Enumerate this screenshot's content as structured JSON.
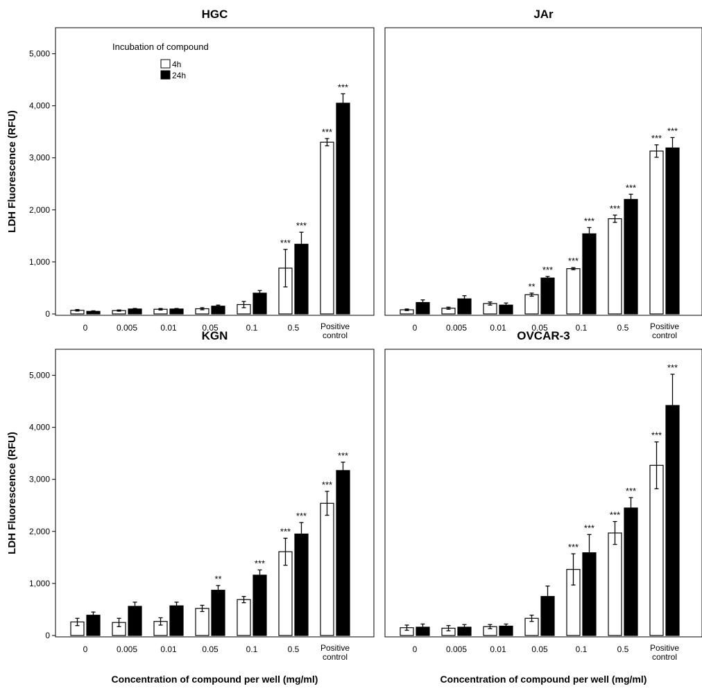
{
  "chart_data": [
    {
      "type": "bar",
      "title": "HGC",
      "ylabel": "LDH Fluorescence (RFU)",
      "xlabel": "",
      "ylim": [
        0,
        5500
      ],
      "yticks": [
        "0",
        "1,000",
        "2,000",
        "3,000",
        "4,000",
        "5,000"
      ],
      "categories": [
        "0",
        "0.005",
        "0.01",
        "0.05",
        "0.1",
        "0.5",
        "Positive control"
      ],
      "legend": {
        "title": "Incubation of compound",
        "placement": "top-left"
      },
      "series": [
        {
          "name": "4h",
          "color": "#ffffff",
          "values": [
            70,
            65,
            90,
            100,
            180,
            880,
            3300
          ],
          "errors": [
            15,
            12,
            15,
            20,
            60,
            360,
            70
          ],
          "stars": [
            "",
            "",
            "",
            "",
            "",
            "***",
            "***"
          ]
        },
        {
          "name": "24h",
          "color": "#000000",
          "values": [
            50,
            95,
            95,
            150,
            400,
            1340,
            4050
          ],
          "errors": [
            10,
            10,
            10,
            20,
            50,
            230,
            180
          ],
          "stars": [
            "",
            "",
            "",
            "",
            "",
            "***",
            "***"
          ]
        }
      ]
    },
    {
      "type": "bar",
      "title": "JAr",
      "ylabel": "",
      "xlabel": "",
      "ylim": [
        0,
        5500
      ],
      "yticks": [],
      "categories": [
        "0",
        "0.005",
        "0.01",
        "0.05",
        "0.1",
        "0.5",
        "Positive control"
      ],
      "series": [
        {
          "name": "4h",
          "color": "#ffffff",
          "values": [
            80,
            110,
            200,
            370,
            870,
            1830,
            3130
          ],
          "errors": [
            15,
            20,
            30,
            30,
            20,
            70,
            120
          ],
          "stars": [
            "",
            "",
            "",
            "**",
            "***",
            "***",
            "***"
          ]
        },
        {
          "name": "24h",
          "color": "#000000",
          "values": [
            220,
            290,
            170,
            690,
            1540,
            2200,
            3190
          ],
          "errors": [
            50,
            60,
            40,
            30,
            120,
            100,
            200
          ],
          "stars": [
            "",
            "",
            "",
            "***",
            "***",
            "***",
            "***"
          ]
        }
      ]
    },
    {
      "type": "bar",
      "title": "KGN",
      "ylabel": "LDH Fluorescence (RFU)",
      "xlabel": "Concentration of compound per well (mg/ml)",
      "ylim": [
        0,
        5500
      ],
      "yticks": [
        "0",
        "1,000",
        "2,000",
        "3,000",
        "4,000",
        "5,000"
      ],
      "categories": [
        "0",
        "0.005",
        "0.01",
        "0.05",
        "0.1",
        "0.5",
        "Positive control"
      ],
      "series": [
        {
          "name": "4h",
          "color": "#ffffff",
          "values": [
            260,
            250,
            270,
            520,
            690,
            1610,
            2540
          ],
          "errors": [
            70,
            80,
            70,
            60,
            60,
            260,
            230
          ],
          "stars": [
            "",
            "",
            "",
            "",
            "",
            "***",
            "***"
          ]
        },
        {
          "name": "24h",
          "color": "#000000",
          "values": [
            390,
            560,
            570,
            870,
            1160,
            1950,
            3170
          ],
          "errors": [
            60,
            80,
            70,
            90,
            100,
            220,
            160
          ],
          "stars": [
            "",
            "",
            "",
            "**",
            "***",
            "***",
            "***"
          ]
        }
      ]
    },
    {
      "type": "bar",
      "title": "OVCAR-3",
      "ylabel": "",
      "xlabel": "Concentration of compound per well (mg/ml)",
      "ylim": [
        0,
        5500
      ],
      "yticks": [],
      "categories": [
        "0",
        "0.005",
        "0.01",
        "0.05",
        "0.1",
        "0.5",
        "Positive control"
      ],
      "series": [
        {
          "name": "4h",
          "color": "#ffffff",
          "values": [
            150,
            140,
            170,
            330,
            1270,
            1970,
            3270
          ],
          "errors": [
            50,
            50,
            40,
            60,
            300,
            220,
            450
          ],
          "stars": [
            "",
            "",
            "",
            "",
            "***",
            "***",
            "***"
          ]
        },
        {
          "name": "24h",
          "color": "#000000",
          "values": [
            160,
            160,
            180,
            750,
            1590,
            2450,
            4420
          ],
          "errors": [
            60,
            50,
            40,
            200,
            350,
            200,
            600
          ],
          "stars": [
            "",
            "",
            "",
            "",
            "***",
            "***",
            "***"
          ]
        }
      ]
    }
  ]
}
